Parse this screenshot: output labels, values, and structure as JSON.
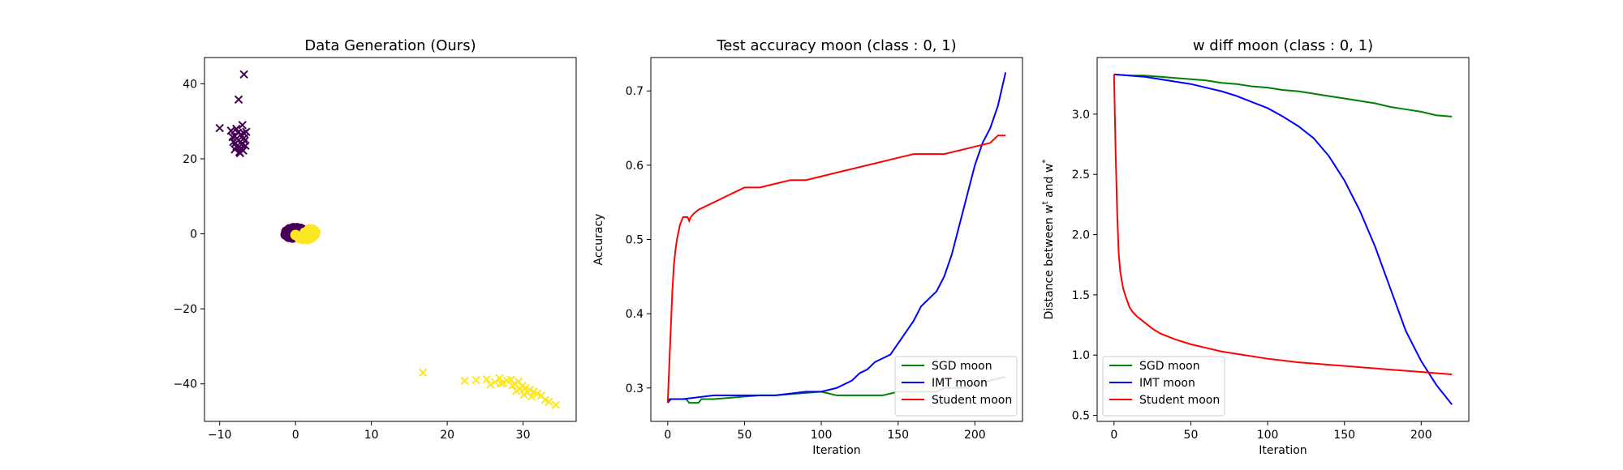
{
  "figure": {
    "chart_data": [
      {
        "type": "scatter",
        "title": "Data Generation (Ours)",
        "xlabel": "",
        "ylabel": "",
        "xlim": [
          -12,
          37
        ],
        "ylim": [
          -50,
          47
        ],
        "xticks": [
          -10,
          0,
          10,
          20,
          30
        ],
        "yticks": [
          -40,
          -20,
          0,
          20,
          40
        ],
        "grid": false,
        "colors": {
          "class0": "#440154",
          "class1": "#fde725"
        },
        "series": [
          {
            "marker": "x",
            "class": 0,
            "points": [
              [
                -6.8,
                42.5
              ],
              [
                -7.5,
                35.8
              ],
              [
                -10.0,
                28.2
              ],
              [
                -7.0,
                29.0
              ],
              [
                -8.5,
                27.5
              ],
              [
                -7.8,
                28.0
              ],
              [
                -6.5,
                27.2
              ],
              [
                -7.2,
                26.5
              ],
              [
                -8.0,
                26.0
              ],
              [
                -6.8,
                25.5
              ],
              [
                -7.5,
                25.0
              ],
              [
                -8.2,
                24.5
              ],
              [
                -7.0,
                24.0
              ],
              [
                -6.6,
                23.5
              ],
              [
                -7.8,
                23.2
              ],
              [
                -7.2,
                22.8
              ],
              [
                -8.0,
                22.5
              ],
              [
                -6.9,
                22.2
              ],
              [
                -7.4,
                21.8
              ],
              [
                -6.8,
                26.8
              ],
              [
                -7.6,
                27.0
              ],
              [
                -8.3,
                25.8
              ],
              [
                -6.7,
                24.8
              ],
              [
                -7.9,
                24.2
              ],
              [
                -7.1,
                23.8
              ],
              [
                -7.3,
                21.5
              ]
            ]
          },
          {
            "marker": "o",
            "class": 0,
            "points": [
              [
                -1.2,
                0.6
              ],
              [
                -0.8,
                1.2
              ],
              [
                -0.3,
                1.5
              ],
              [
                0.2,
                1.5
              ],
              [
                0.7,
                1.3
              ],
              [
                1.1,
                0.9
              ],
              [
                -1.3,
                -0.2
              ],
              [
                -0.9,
                -0.8
              ],
              [
                -0.4,
                -1.0
              ],
              [
                0.1,
                -0.8
              ],
              [
                0.5,
                -0.4
              ],
              [
                -0.5,
                0.3
              ],
              [
                0.3,
                0.2
              ],
              [
                -1.0,
                0.0
              ],
              [
                0.8,
                0.4
              ]
            ]
          },
          {
            "marker": "o",
            "class": 1,
            "points": [
              [
                0.0,
                -0.3
              ],
              [
                0.5,
                -1.1
              ],
              [
                1.0,
                -1.4
              ],
              [
                1.6,
                -1.4
              ],
              [
                2.1,
                -1.0
              ],
              [
                2.5,
                -0.3
              ],
              [
                2.6,
                0.5
              ],
              [
                2.3,
                1.1
              ],
              [
                1.8,
                1.2
              ],
              [
                1.2,
                0.3
              ],
              [
                1.4,
                -0.6
              ],
              [
                2.0,
                0.2
              ],
              [
                0.8,
                -0.6
              ],
              [
                2.4,
                0.9
              ],
              [
                1.7,
                -0.2
              ]
            ]
          },
          {
            "marker": "x",
            "class": 1,
            "points": [
              [
                16.8,
                -37.0
              ],
              [
                22.3,
                -39.2
              ],
              [
                23.8,
                -39.0
              ],
              [
                25.2,
                -38.8
              ],
              [
                25.7,
                -40.2
              ],
              [
                26.3,
                -39.5
              ],
              [
                26.9,
                -38.5
              ],
              [
                27.4,
                -39.8
              ],
              [
                27.9,
                -39.1
              ],
              [
                28.4,
                -38.9
              ],
              [
                28.9,
                -40.1
              ],
              [
                29.4,
                -39.4
              ],
              [
                29.9,
                -40.6
              ],
              [
                30.3,
                -41.1
              ],
              [
                30.6,
                -42.3
              ],
              [
                30.9,
                -41.6
              ],
              [
                31.4,
                -42.1
              ],
              [
                31.9,
                -42.6
              ],
              [
                32.4,
                -43.1
              ],
              [
                32.9,
                -44.3
              ],
              [
                33.4,
                -44.8
              ],
              [
                34.3,
                -45.6
              ],
              [
                27.1,
                -39.9
              ],
              [
                28.6,
                -40.4
              ],
              [
                29.6,
                -41.3
              ],
              [
                30.1,
                -42.9
              ],
              [
                31.1,
                -43.4
              ],
              [
                29.1,
                -41.9
              ]
            ]
          }
        ]
      },
      {
        "type": "line",
        "title": "Test accuracy moon (class : 0, 1)",
        "xlabel": "Iteration",
        "ylabel": "Accuracy",
        "xlim": [
          -11,
          231
        ],
        "ylim": [
          0.255,
          0.745
        ],
        "xticks": [
          0,
          50,
          100,
          150,
          200
        ],
        "yticks": [
          0.3,
          0.4,
          0.5,
          0.6,
          0.7
        ],
        "grid": false,
        "legend": "lower right",
        "series": [
          {
            "name": "SGD moon",
            "color": "#008000",
            "x": [
              0,
              1,
              3,
              5,
              12,
              14,
              20,
              22,
              30,
              60,
              70,
              100,
              110,
              130,
              140,
              150,
              160,
              175,
              180,
              195,
              200,
              210,
              220
            ],
            "y": [
              0.28,
              0.285,
              0.285,
              0.285,
              0.285,
              0.28,
              0.28,
              0.285,
              0.285,
              0.29,
              0.29,
              0.295,
              0.29,
              0.29,
              0.29,
              0.295,
              0.295,
              0.295,
              0.3,
              0.3,
              0.305,
              0.31,
              0.315
            ]
          },
          {
            "name": "IMT moon",
            "color": "#0000ff",
            "x": [
              0,
              2,
              10,
              30,
              50,
              70,
              90,
              100,
              110,
              115,
              120,
              125,
              130,
              135,
              140,
              145,
              150,
              155,
              160,
              165,
              170,
              175,
              180,
              185,
              190,
              195,
              200,
              205,
              210,
              215,
              220
            ],
            "y": [
              0.28,
              0.285,
              0.285,
              0.29,
              0.29,
              0.29,
              0.295,
              0.295,
              0.3,
              0.305,
              0.31,
              0.32,
              0.325,
              0.335,
              0.34,
              0.345,
              0.36,
              0.375,
              0.39,
              0.41,
              0.42,
              0.43,
              0.45,
              0.48,
              0.52,
              0.56,
              0.6,
              0.63,
              0.65,
              0.68,
              0.725
            ]
          },
          {
            "name": "Student moon",
            "color": "#ff0000",
            "x": [
              0,
              1,
              2,
              3,
              4,
              5,
              6,
              7,
              8,
              9,
              10,
              11,
              12,
              13,
              14,
              15,
              17,
              20,
              25,
              30,
              35,
              40,
              45,
              50,
              60,
              70,
              80,
              90,
              100,
              110,
              120,
              130,
              140,
              150,
              160,
              170,
              180,
              190,
              200,
              210,
              215,
              220
            ],
            "y": [
              0.28,
              0.33,
              0.38,
              0.43,
              0.465,
              0.485,
              0.5,
              0.51,
              0.52,
              0.525,
              0.53,
              0.53,
              0.53,
              0.53,
              0.525,
              0.53,
              0.535,
              0.54,
              0.545,
              0.55,
              0.555,
              0.56,
              0.565,
              0.57,
              0.57,
              0.575,
              0.58,
              0.58,
              0.585,
              0.59,
              0.595,
              0.6,
              0.605,
              0.61,
              0.615,
              0.615,
              0.615,
              0.62,
              0.625,
              0.63,
              0.64,
              0.64
            ]
          }
        ]
      },
      {
        "type": "line",
        "title": "w diff moon (class : 0, 1)",
        "xlabel": "Iteration",
        "ylabel": "Distance between w",
        "ylabel_sup1": "t",
        "ylabel_mid": " and w",
        "ylabel_sup2": "*",
        "xlim": [
          -11,
          231
        ],
        "ylim": [
          0.45,
          3.47
        ],
        "xticks": [
          0,
          50,
          100,
          150,
          200
        ],
        "yticks": [
          0.5,
          1.0,
          1.5,
          2.0,
          2.5,
          3.0
        ],
        "grid": false,
        "legend": "lower left",
        "series": [
          {
            "name": "SGD moon",
            "color": "#008000",
            "x": [
              0,
              10,
              20,
              30,
              40,
              50,
              60,
              70,
              80,
              90,
              100,
              110,
              120,
              130,
              140,
              150,
              160,
              170,
              180,
              190,
              200,
              210,
              220
            ],
            "y": [
              3.33,
              3.32,
              3.32,
              3.31,
              3.3,
              3.29,
              3.28,
              3.26,
              3.25,
              3.23,
              3.22,
              3.2,
              3.19,
              3.17,
              3.15,
              3.13,
              3.11,
              3.09,
              3.06,
              3.04,
              3.02,
              2.99,
              2.98
            ]
          },
          {
            "name": "IMT moon",
            "color": "#0000ff",
            "x": [
              0,
              10,
              20,
              30,
              40,
              50,
              60,
              70,
              80,
              90,
              100,
              110,
              120,
              130,
              140,
              150,
              160,
              170,
              180,
              190,
              200,
              210,
              220
            ],
            "y": [
              3.33,
              3.32,
              3.31,
              3.29,
              3.27,
              3.25,
              3.22,
              3.19,
              3.15,
              3.1,
              3.05,
              2.98,
              2.9,
              2.8,
              2.65,
              2.45,
              2.2,
              1.9,
              1.55,
              1.2,
              0.95,
              0.75,
              0.59
            ]
          },
          {
            "name": "Student moon",
            "color": "#ff0000",
            "x": [
              0,
              1,
              2,
              3,
              4,
              5,
              6,
              8,
              10,
              12,
              15,
              20,
              25,
              30,
              40,
              50,
              60,
              70,
              80,
              100,
              120,
              140,
              160,
              180,
              200,
              220
            ],
            "y": [
              3.33,
              2.7,
              2.2,
              1.85,
              1.7,
              1.62,
              1.55,
              1.47,
              1.4,
              1.36,
              1.32,
              1.27,
              1.22,
              1.18,
              1.13,
              1.09,
              1.06,
              1.03,
              1.01,
              0.97,
              0.94,
              0.92,
              0.9,
              0.88,
              0.86,
              0.84
            ]
          }
        ]
      }
    ]
  }
}
